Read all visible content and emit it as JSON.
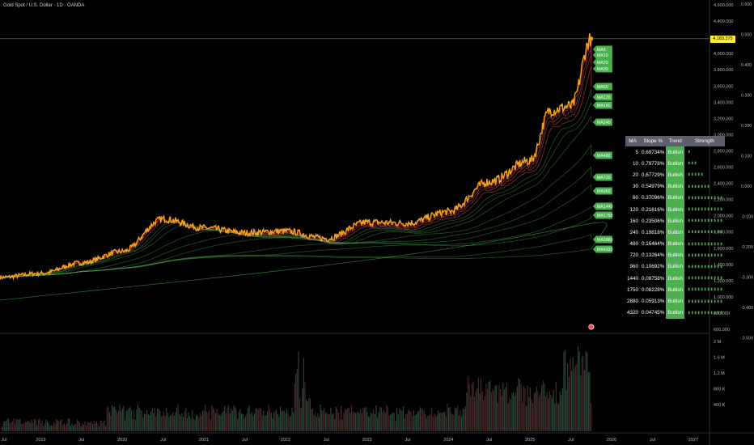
{
  "header": {
    "title": "Gold Spot / U.S. Dollar · 1D · OANDA"
  },
  "current_price_label": "4,183.375",
  "colors": {
    "price": "#f7a21b",
    "ma": "#4caf50",
    "ma_short_bear": "#ff5252",
    "tag_bg": "#4caf50",
    "last_price": "#ffeb3b",
    "table_header": "#5d606b",
    "volume": "#4a4a4a"
  },
  "ma_labels": [
    "MA5",
    "MA10",
    "MA20",
    "MA30",
    "MA60",
    "MA120",
    "MA160",
    "MA240",
    "MA480",
    "MA720",
    "MA960",
    "MA1440",
    "MA1750",
    "MA2880",
    "MA4320"
  ],
  "table": {
    "headers": [
      "MA",
      "Slope %",
      "Trend",
      "Strength"
    ],
    "rows": [
      {
        "ma": "5",
        "slope": "0.69734%",
        "trend": "Bullish",
        "strength": 1
      },
      {
        "ma": "10",
        "slope": "0.79778%",
        "trend": "Bullish",
        "strength": 3
      },
      {
        "ma": "20",
        "slope": "0.67729%",
        "trend": "Bullish",
        "strength": 5
      },
      {
        "ma": "30",
        "slope": "0.54979%",
        "trend": "Bullish",
        "strength": 7
      },
      {
        "ma": "60",
        "slope": "0.37096%",
        "trend": "Bullish",
        "strength": 11
      },
      {
        "ma": "120",
        "slope": "0.21616%",
        "trend": "Bullish",
        "strength": 11
      },
      {
        "ma": "160",
        "slope": "0.23506%",
        "trend": "Bullish",
        "strength": 11
      },
      {
        "ma": "240",
        "slope": "0.19818%",
        "trend": "Bullish",
        "strength": 11
      },
      {
        "ma": "480",
        "slope": "0.16464%",
        "trend": "Bullish",
        "strength": 11
      },
      {
        "ma": "720",
        "slope": "0.13264%",
        "trend": "Bullish",
        "strength": 11
      },
      {
        "ma": "960",
        "slope": "0.10692%",
        "trend": "Bullish",
        "strength": 11
      },
      {
        "ma": "1440",
        "slope": "0.08758%",
        "trend": "Bullish",
        "strength": 11
      },
      {
        "ma": "1750",
        "slope": "0.08228%",
        "trend": "Bullish",
        "strength": 11
      },
      {
        "ma": "2880",
        "slope": "0.05913%",
        "trend": "Bullish",
        "strength": 11
      },
      {
        "ma": "4320",
        "slope": "0.04745%",
        "trend": "Bullish",
        "strength": 11
      }
    ]
  },
  "chart_data": {
    "type": "line",
    "title": "Gold Spot / U.S. Dollar · 1D · OANDA",
    "x": [
      "2018-07",
      "2019-01",
      "2019-07",
      "2020-01",
      "2020-07",
      "2021-01",
      "2021-07",
      "2022-01",
      "2022-07",
      "2023-01",
      "2023-07",
      "2024-01",
      "2024-07",
      "2025-01",
      "2025-04",
      "2025-07",
      "2025-10"
    ],
    "series": [
      {
        "values": [
          1240,
          1290,
          1420,
          1560,
          1960,
          1850,
          1790,
          1810,
          1720,
          1920,
          1910,
          2050,
          2420,
          2680,
          3300,
          3350,
          4183
        ]
      }
    ],
    "last_value": 4183.375,
    "ylim": [
      600,
      4600
    ],
    "y_ticks": [
      "4,600.000",
      "4,400.000",
      "4,200.000",
      "4,000.000",
      "3,800.000",
      "3,600.000",
      "3,400.000",
      "3,200.000",
      "3,000.000",
      "2,800.000",
      "2,600.000",
      "2,400.000",
      "2,200.000",
      "2,000.000",
      "1,800.000",
      "1,600.000",
      "1,400.000",
      "1,200.000",
      "1,000.000",
      "800.000",
      "600.000"
    ],
    "oscillator_ticks": [
      "0.600",
      "0.500",
      "0.400",
      "0.300",
      "0.200",
      "0.100",
      "0.000",
      "-0.100",
      "-0.200",
      "-0.300",
      "-0.400",
      "-0.500"
    ],
    "volume_ticks": [
      "2 M",
      "1.6 M",
      "1.2 M",
      "800 K",
      "400 K"
    ],
    "x_tick_labels": [
      "Jul",
      "2019",
      "Jul",
      "2020",
      "Jul",
      "2021",
      "Jul",
      "2022",
      "Jul",
      "2023",
      "Jul",
      "2024",
      "Jul",
      "2025",
      "Jul",
      "2026",
      "Jul",
      "2027",
      "Jul"
    ],
    "grid": false
  }
}
